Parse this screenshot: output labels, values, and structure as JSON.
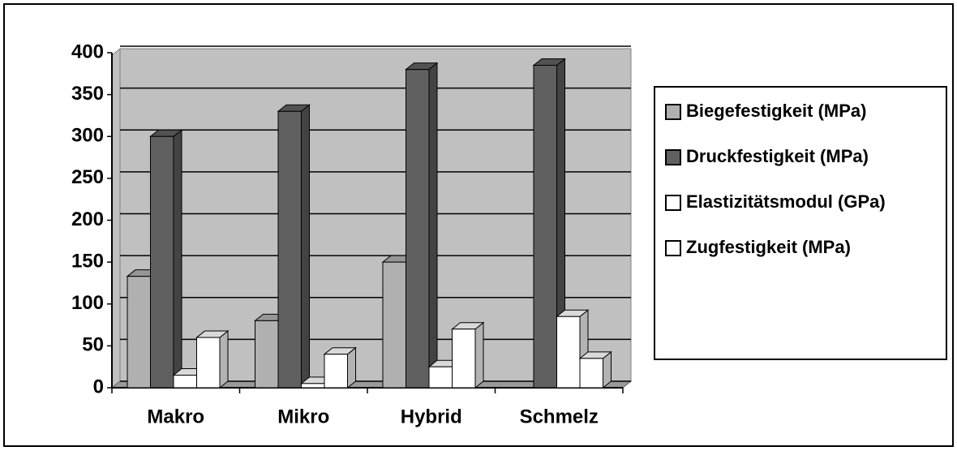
{
  "chart_data": {
    "type": "bar3d",
    "categories": [
      "Makro",
      "Mikro",
      "Hybrid",
      "Schmelz"
    ],
    "series": [
      {
        "name": "Biegefestigkeit (MPa)",
        "color": "#b0b0b0",
        "values": [
          133,
          80,
          150,
          null
        ]
      },
      {
        "name": "Druckfestigkeit (MPa)",
        "color": "#606060",
        "values": [
          300,
          330,
          380,
          385
        ]
      },
      {
        "name": "Elastizitätsmodul (GPa)",
        "color": "#ffffff",
        "values": [
          15,
          5,
          25,
          85
        ]
      },
      {
        "name": "Zugfestigkeit (MPa)",
        "color": "#ffffff",
        "values": [
          60,
          40,
          70,
          35
        ]
      }
    ],
    "ylim": [
      0,
      400
    ],
    "yticks": [
      0,
      50,
      100,
      150,
      200,
      250,
      300,
      350,
      400
    ],
    "grid": true
  }
}
